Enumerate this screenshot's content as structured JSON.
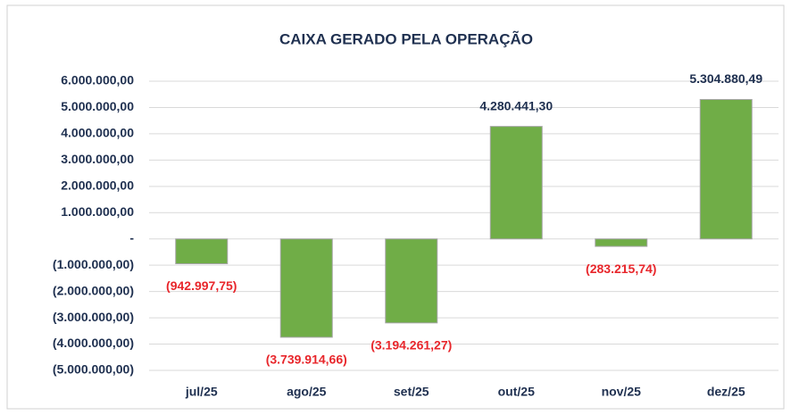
{
  "chart_data": {
    "type": "bar",
    "title": "CAIXA GERADO PELA OPERAÇÃO",
    "categories": [
      "jul/25",
      "ago/25",
      "set/25",
      "out/25",
      "nov/25",
      "dez/25"
    ],
    "values": [
      -942997.75,
      -3739914.66,
      -3194261.27,
      4280441.3,
      -283215.74,
      5304880.49
    ],
    "value_labels": [
      "(942.997,75)",
      "(3.739.914,66)",
      "(3.194.261,27)",
      "4.280.441,30",
      "(283.215,74)",
      "5.304.880,49"
    ],
    "color": "#70ad47",
    "positive_label_color": "#1f3050",
    "negative_label_color": "#e8262b",
    "ylim": [
      -5000000,
      6000000
    ],
    "yticks": [
      {
        "value": -5000000,
        "label": "(5.000.000,00)"
      },
      {
        "value": -4000000,
        "label": "(4.000.000,00)"
      },
      {
        "value": -3000000,
        "label": "(3.000.000,00)"
      },
      {
        "value": -2000000,
        "label": "(2.000.000,00)"
      },
      {
        "value": -1000000,
        "label": "(1.000.000,00)"
      },
      {
        "value": 0,
        "label": "-"
      },
      {
        "value": 1000000,
        "label": "1.000.000,00"
      },
      {
        "value": 2000000,
        "label": "2.000.000,00"
      },
      {
        "value": 3000000,
        "label": "3.000.000,00"
      },
      {
        "value": 4000000,
        "label": "4.000.000,00"
      },
      {
        "value": 5000000,
        "label": "5.000.000,00"
      },
      {
        "value": 6000000,
        "label": "6.000.000,00"
      }
    ],
    "grid": true
  }
}
